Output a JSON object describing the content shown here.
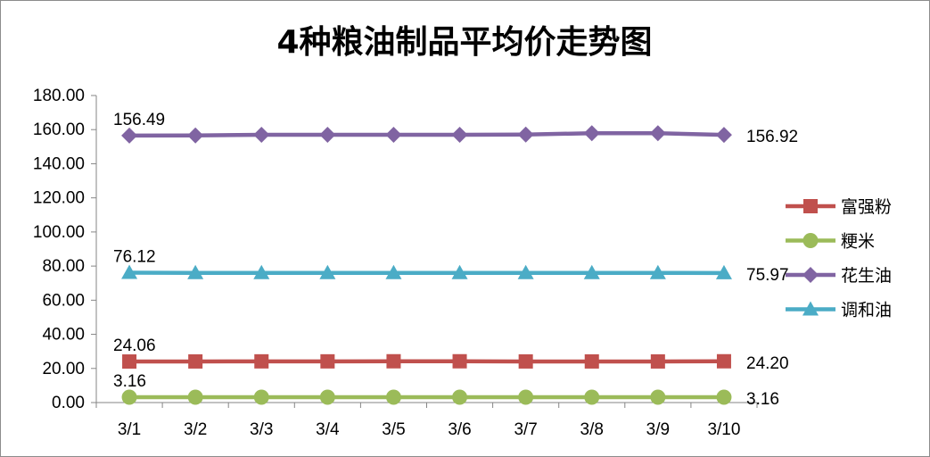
{
  "chart_data": {
    "type": "line",
    "title": "4种粮油制品平均价走势图",
    "xlabel": "",
    "ylabel": "",
    "categories": [
      "3/1",
      "3/2",
      "3/3",
      "3/4",
      "3/5",
      "3/6",
      "3/7",
      "3/8",
      "3/9",
      "3/10"
    ],
    "ylim": [
      0,
      180
    ],
    "yticks": [
      "0.00",
      "20.00",
      "40.00",
      "60.00",
      "80.00",
      "100.00",
      "120.00",
      "140.00",
      "160.00",
      "180.00"
    ],
    "grid": false,
    "legend_position": "right",
    "series": [
      {
        "name": "富强粉",
        "color": "#c0504d",
        "marker": "square",
        "values": [
          24.06,
          24.1,
          24.15,
          24.15,
          24.2,
          24.2,
          24.1,
          24.1,
          24.1,
          24.2
        ],
        "first_label": "24.06",
        "last_label": "24.20"
      },
      {
        "name": "粳米",
        "color": "#9bbb59",
        "marker": "circle",
        "values": [
          3.16,
          3.16,
          3.16,
          3.16,
          3.16,
          3.16,
          3.16,
          3.16,
          3.16,
          3.16
        ],
        "first_label": "3.16",
        "last_label": "3.16"
      },
      {
        "name": "花生油",
        "color": "#8064a2",
        "marker": "diamond",
        "values": [
          156.49,
          156.6,
          157.0,
          157.0,
          157.0,
          157.0,
          157.1,
          157.9,
          157.9,
          156.92
        ],
        "first_label": "156.49",
        "last_label": "156.92"
      },
      {
        "name": "调和油",
        "color": "#4bacc6",
        "marker": "triangle",
        "values": [
          76.12,
          76.0,
          76.0,
          76.0,
          76.0,
          76.0,
          76.0,
          76.0,
          76.0,
          75.97
        ],
        "first_label": "76.12",
        "last_label": "75.97"
      }
    ]
  }
}
